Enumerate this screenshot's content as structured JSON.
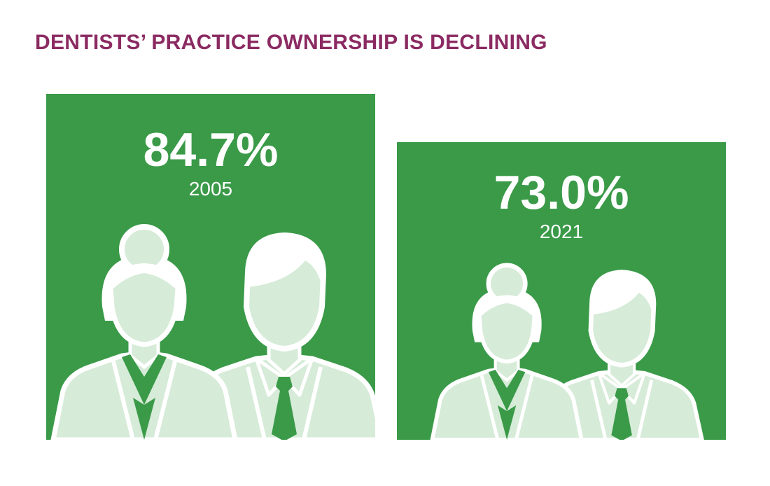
{
  "title": "DENTISTS’ PRACTICE OWNERSHIP IS DECLINING",
  "colors": {
    "title": "#8b2a62",
    "panel": "#3a9a48",
    "figure_fill": "#d6ebd8",
    "figure_outline": "#ffffff"
  },
  "chart_data": {
    "type": "bar",
    "categories": [
      "2005",
      "2021"
    ],
    "values": [
      84.7,
      73.0
    ],
    "value_labels": [
      "84.7%",
      "73.0%"
    ],
    "unit": "%",
    "title": "DENTISTS’ PRACTICE OWNERSHIP IS DECLINING",
    "icons": [
      "person-female-icon",
      "person-male-icon"
    ]
  }
}
